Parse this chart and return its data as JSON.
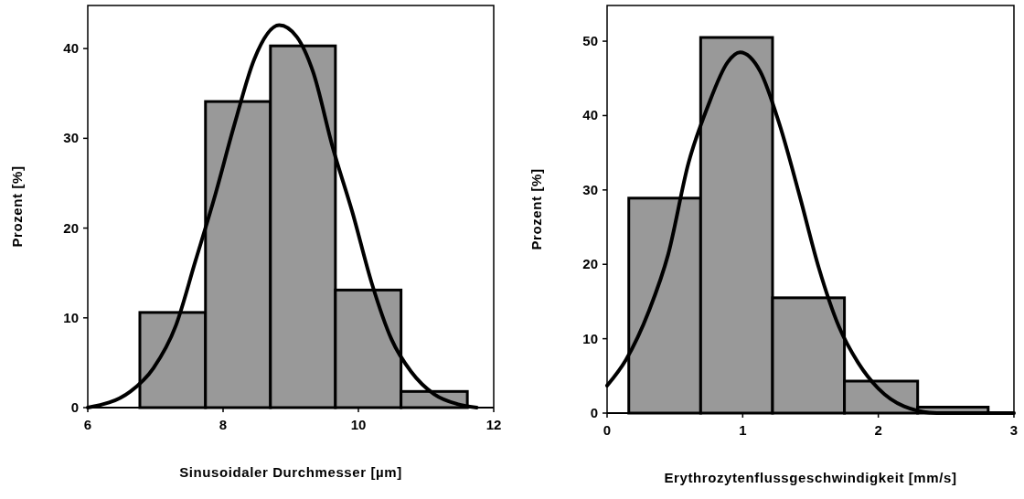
{
  "chart_data": [
    {
      "type": "histogram",
      "xlabel": "Sinusoidaler Durchmesser [µm]",
      "ylabel": "Prozent [%]",
      "bins": [
        6.77,
        7.74,
        8.7,
        9.66,
        10.63,
        11.61
      ],
      "values": [
        10.6,
        34.1,
        40.3,
        13.1,
        1.8
      ],
      "color": "#999999",
      "xlim": [
        6,
        12
      ],
      "xticks": [
        6,
        8,
        10,
        12
      ],
      "ylim": [
        0,
        44.8
      ],
      "yticks": [
        0,
        10,
        20,
        30,
        40
      ],
      "series": [
        {
          "type": "line",
          "color": "#000000",
          "x": [
            6,
            6.63,
            6.97,
            7.3,
            7.59,
            7.88,
            8.17,
            8.46,
            8.83,
            9.09,
            9.33,
            9.62,
            9.91,
            10.2,
            10.49,
            10.78,
            11.12,
            11.46,
            11.75
          ],
          "values": [
            0,
            1.8,
            4.4,
            9.1,
            16.3,
            23.6,
            31.6,
            38.8,
            42.6,
            41.3,
            37.4,
            29,
            21.8,
            13.8,
            7.6,
            4,
            1.5,
            0.4,
            0
          ]
        }
      ]
    },
    {
      "type": "histogram",
      "xlabel": "Erythrozytenflussgeschwindigkeit [mm/s]",
      "ylabel": "Prozent [%]",
      "bins": [
        0.16,
        0.69,
        1.22,
        1.75,
        2.29,
        2.81
      ],
      "values": [
        28.9,
        50.5,
        15.5,
        4.3,
        0.8
      ],
      "color": "#999999",
      "xlim": [
        0,
        3
      ],
      "xticks": [
        0,
        1,
        2,
        3
      ],
      "ylim": [
        0,
        54.8
      ],
      "yticks": [
        0,
        10,
        20,
        30,
        40,
        50
      ],
      "series": [
        {
          "type": "line",
          "color": "#000000",
          "x": [
            0,
            0.14,
            0.31,
            0.45,
            0.6,
            0.74,
            0.89,
            0.98,
            1.13,
            1.27,
            1.42,
            1.56,
            1.71,
            1.85,
            2,
            2.19,
            2.43,
            3
          ],
          "values": [
            3.7,
            7.2,
            13.8,
            21.3,
            33.6,
            41.1,
            47.2,
            48.5,
            45.9,
            38.9,
            29.2,
            19.6,
            11.6,
            6.8,
            3.3,
            0.9,
            0,
            0
          ]
        }
      ]
    }
  ]
}
